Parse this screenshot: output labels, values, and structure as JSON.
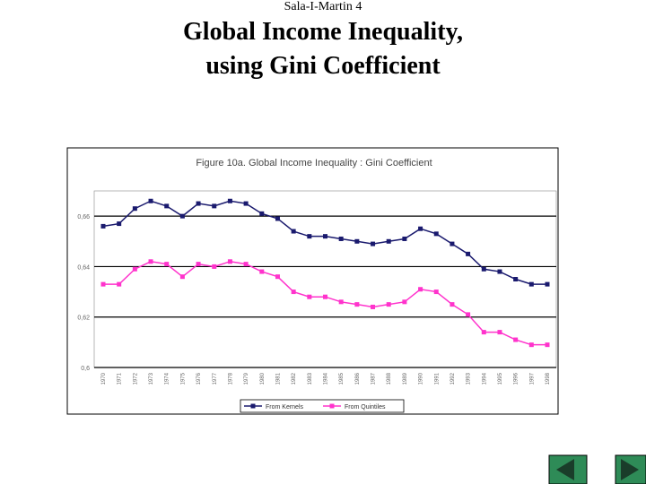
{
  "slide": {
    "header": "Sala-I-Martin 4",
    "title": [
      "Global Income Inequality,",
      "using Gini Coefficient"
    ]
  },
  "chart_data": {
    "type": "line",
    "title": "Figure 10a. Global Income Inequality : Gini Coefficient",
    "categories": [
      "1970",
      "1971",
      "1972",
      "1973",
      "1974",
      "1975",
      "1976",
      "1977",
      "1978",
      "1979",
      "1980",
      "1981",
      "1982",
      "1983",
      "1984",
      "1985",
      "1986",
      "1987",
      "1988",
      "1989",
      "1990",
      "1991",
      "1992",
      "1993",
      "1994",
      "1995",
      "1996",
      "1997",
      "1998"
    ],
    "series": [
      {
        "name": "From Kernels",
        "color": "#1a1a6e",
        "values": [
          0.656,
          0.657,
          0.663,
          0.666,
          0.664,
          0.66,
          0.665,
          0.664,
          0.666,
          0.665,
          0.661,
          0.659,
          0.654,
          0.652,
          0.652,
          0.651,
          0.65,
          0.649,
          0.65,
          0.651,
          0.655,
          0.653,
          0.649,
          0.645,
          0.639,
          0.638,
          0.635,
          0.633,
          0.633
        ]
      },
      {
        "name": "From Quintiles",
        "color": "#ff33cc",
        "values": [
          0.633,
          0.633,
          0.639,
          0.642,
          0.641,
          0.636,
          0.641,
          0.64,
          0.642,
          0.641,
          0.638,
          0.636,
          0.63,
          0.628,
          0.628,
          0.626,
          0.625,
          0.624,
          0.625,
          0.626,
          0.631,
          0.63,
          0.625,
          0.621,
          0.614,
          0.614,
          0.611,
          0.609,
          0.609
        ]
      }
    ],
    "ylim": [
      0.6,
      0.67
    ],
    "yticks": [
      {
        "value": 0.6,
        "label": "0,6"
      },
      {
        "value": 0.62,
        "label": "0,62"
      },
      {
        "value": 0.64,
        "label": "0,64"
      },
      {
        "value": 0.66,
        "label": "0,66"
      }
    ],
    "grid": true
  }
}
